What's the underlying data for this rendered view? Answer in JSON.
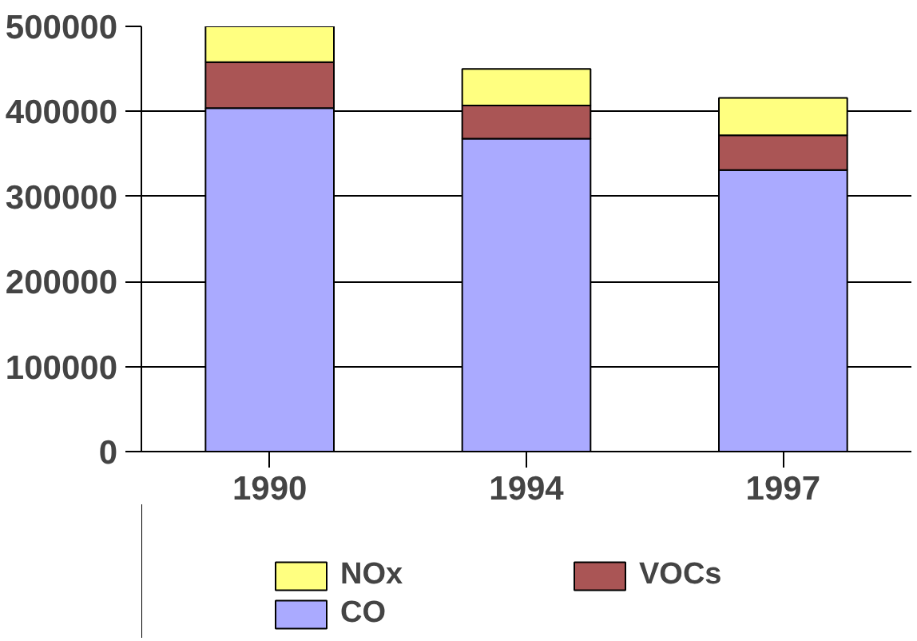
{
  "chart_data": {
    "type": "bar",
    "stacked": true,
    "categories": [
      "1990",
      "1994",
      "1997"
    ],
    "series": [
      {
        "name": "CO",
        "color": "#aaaaff",
        "values": [
          404000,
          368000,
          331000
        ]
      },
      {
        "name": "VOCs",
        "color": "#aa5555",
        "values": [
          54000,
          39000,
          41000
        ]
      },
      {
        "name": "NOx",
        "color": "#ffff80",
        "values": [
          42000,
          43000,
          44000
        ]
      }
    ],
    "ylim": [
      0,
      500000
    ],
    "yticks": [
      0,
      100000,
      200000,
      300000,
      400000,
      500000
    ],
    "grid": "y",
    "legend": "bottom"
  }
}
